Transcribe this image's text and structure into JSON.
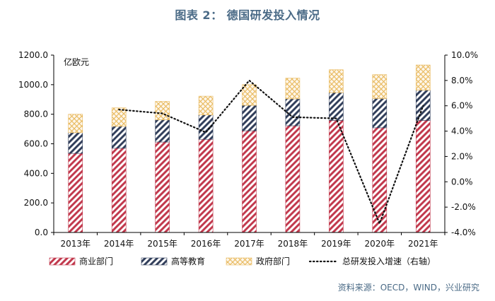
{
  "chart_data": {
    "type": "bar",
    "stacked": true,
    "title": "图表 2： 德国研发投入情况",
    "unit_label": "亿欧元",
    "categories": [
      "2013年",
      "2014年",
      "2015年",
      "2016年",
      "2017年",
      "2018年",
      "2019年",
      "2020年",
      "2021年"
    ],
    "series": [
      {
        "name": "商业部门",
        "axis": "left",
        "pattern": "diagonal-red",
        "color": "#c23a4e",
        "values": [
          535,
          570,
          612,
          630,
          688,
          722,
          758,
          708,
          758
        ]
      },
      {
        "name": "高等教育",
        "axis": "left",
        "pattern": "diagonal-navy",
        "color": "#33405c",
        "values": [
          140,
          148,
          150,
          165,
          172,
          182,
          188,
          198,
          205
        ]
      },
      {
        "name": "政府部门",
        "axis": "left",
        "pattern": "crosshatch-gold",
        "color": "#e8b85a",
        "values": [
          125,
          125,
          125,
          127,
          140,
          140,
          155,
          162,
          170
        ]
      }
    ],
    "line_series": [
      {
        "name": "总研发投入增速（右轴）",
        "axis": "right",
        "style": "dotted",
        "color": "#111111",
        "values": [
          null,
          5.7,
          5.4,
          3.9,
          8.0,
          5.1,
          5.0,
          -3.3,
          6.0
        ]
      }
    ],
    "left_axis": {
      "min": 0,
      "max": 1200,
      "ticks": [
        "0.0",
        "200.0",
        "400.0",
        "600.0",
        "800.0",
        "1000.0",
        "1200.0"
      ]
    },
    "right_axis": {
      "min": -4,
      "max": 10,
      "ticks": [
        "-4.0%",
        "-2.0%",
        "0.0%",
        "2.0%",
        "4.0%",
        "6.0%",
        "8.0%",
        "10.0%"
      ]
    },
    "legend_position": "bottom",
    "grid": false
  },
  "source": "资料来源：OECD，WIND，兴业研究",
  "colors": {
    "title": "#4a6a86",
    "axis": "#000000",
    "business": "#c23a4e",
    "higher_edu": "#33405c",
    "government": "#e8b85a"
  }
}
